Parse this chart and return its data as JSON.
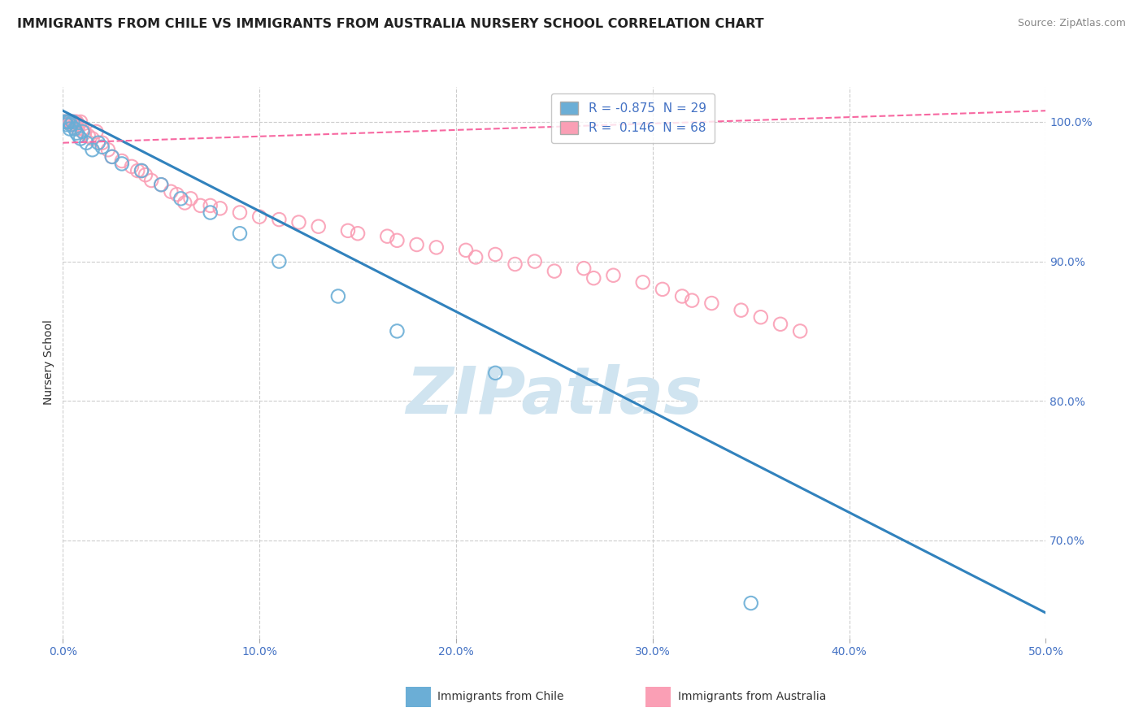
{
  "title": "IMMIGRANTS FROM CHILE VS IMMIGRANTS FROM AUSTRALIA NURSERY SCHOOL CORRELATION CHART",
  "source": "Source: ZipAtlas.com",
  "ylabel": "Nursery School",
  "xlim": [
    0.0,
    50.0
  ],
  "ylim": [
    63.0,
    102.5
  ],
  "xticks": [
    0.0,
    10.0,
    20.0,
    30.0,
    40.0,
    50.0
  ],
  "xtick_labels": [
    "0.0%",
    "10.0%",
    "20.0%",
    "30.0%",
    "40.0%",
    "50.0%"
  ],
  "yticks": [
    70.0,
    80.0,
    90.0,
    100.0
  ],
  "ytick_labels": [
    "70.0%",
    "80.0%",
    "90.0%",
    "100.0%"
  ],
  "legend_r_chile": "-0.875",
  "legend_n_chile": "29",
  "legend_r_aus": "0.146",
  "legend_n_aus": "68",
  "chile_color": "#6baed6",
  "aus_color": "#fa9fb5",
  "chile_line_color": "#3182bd",
  "aus_line_color": "#f768a1",
  "watermark": "ZIPatlas",
  "watermark_color": "#d0e4f0",
  "background_color": "#ffffff",
  "grid_color": "#cccccc",
  "title_color": "#222222",
  "axis_label_color": "#333333",
  "right_axis_color": "#4472c4",
  "source_color": "#888888",
  "chile_scatter": {
    "x": [
      0.1,
      0.15,
      0.2,
      0.25,
      0.3,
      0.35,
      0.4,
      0.5,
      0.6,
      0.7,
      0.8,
      0.9,
      1.0,
      1.2,
      1.5,
      1.8,
      2.0,
      2.5,
      3.0,
      4.0,
      5.0,
      6.0,
      7.5,
      9.0,
      11.0,
      14.0,
      17.0,
      22.0,
      35.0
    ],
    "y": [
      100.0,
      100.0,
      99.8,
      100.0,
      100.0,
      99.5,
      99.8,
      100.0,
      99.5,
      99.2,
      99.0,
      98.8,
      99.3,
      98.5,
      98.0,
      98.5,
      98.2,
      97.5,
      97.0,
      96.5,
      95.5,
      94.5,
      93.5,
      92.0,
      90.0,
      87.5,
      85.0,
      82.0,
      65.5
    ]
  },
  "aus_scatter": {
    "x": [
      0.05,
      0.1,
      0.15,
      0.2,
      0.25,
      0.3,
      0.35,
      0.4,
      0.45,
      0.5,
      0.55,
      0.6,
      0.65,
      0.7,
      0.75,
      0.8,
      0.9,
      1.0,
      1.1,
      1.3,
      1.5,
      1.7,
      2.0,
      2.3,
      2.5,
      3.0,
      3.5,
      4.0,
      4.5,
      5.0,
      5.5,
      6.5,
      7.5,
      9.0,
      11.0,
      13.0,
      15.0,
      17.0,
      19.0,
      22.0,
      24.0,
      26.5,
      28.0,
      29.5,
      30.5,
      31.5,
      33.0,
      34.5,
      35.5,
      36.5,
      37.5,
      5.8,
      6.2,
      7.0,
      8.0,
      3.8,
      4.2,
      10.0,
      12.0,
      14.5,
      16.5,
      18.0,
      20.5,
      21.0,
      23.0,
      25.0,
      27.0,
      32.0
    ],
    "y": [
      100.0,
      100.0,
      100.0,
      100.0,
      100.0,
      100.0,
      100.0,
      100.0,
      100.0,
      100.0,
      100.0,
      99.8,
      100.0,
      100.0,
      99.5,
      99.8,
      100.0,
      99.5,
      99.2,
      99.0,
      98.8,
      99.3,
      98.5,
      98.0,
      97.5,
      97.2,
      96.8,
      96.5,
      95.8,
      95.5,
      95.0,
      94.5,
      94.0,
      93.5,
      93.0,
      92.5,
      92.0,
      91.5,
      91.0,
      90.5,
      90.0,
      89.5,
      89.0,
      88.5,
      88.0,
      87.5,
      87.0,
      86.5,
      86.0,
      85.5,
      85.0,
      94.8,
      94.2,
      94.0,
      93.8,
      96.5,
      96.2,
      93.2,
      92.8,
      92.2,
      91.8,
      91.2,
      90.8,
      90.3,
      89.8,
      89.3,
      88.8,
      87.2
    ]
  },
  "chile_line_x": [
    0.0,
    50.0
  ],
  "chile_line_y": [
    100.8,
    64.8
  ],
  "aus_line_x": [
    0.0,
    50.0
  ],
  "aus_line_y": [
    98.5,
    100.8
  ]
}
